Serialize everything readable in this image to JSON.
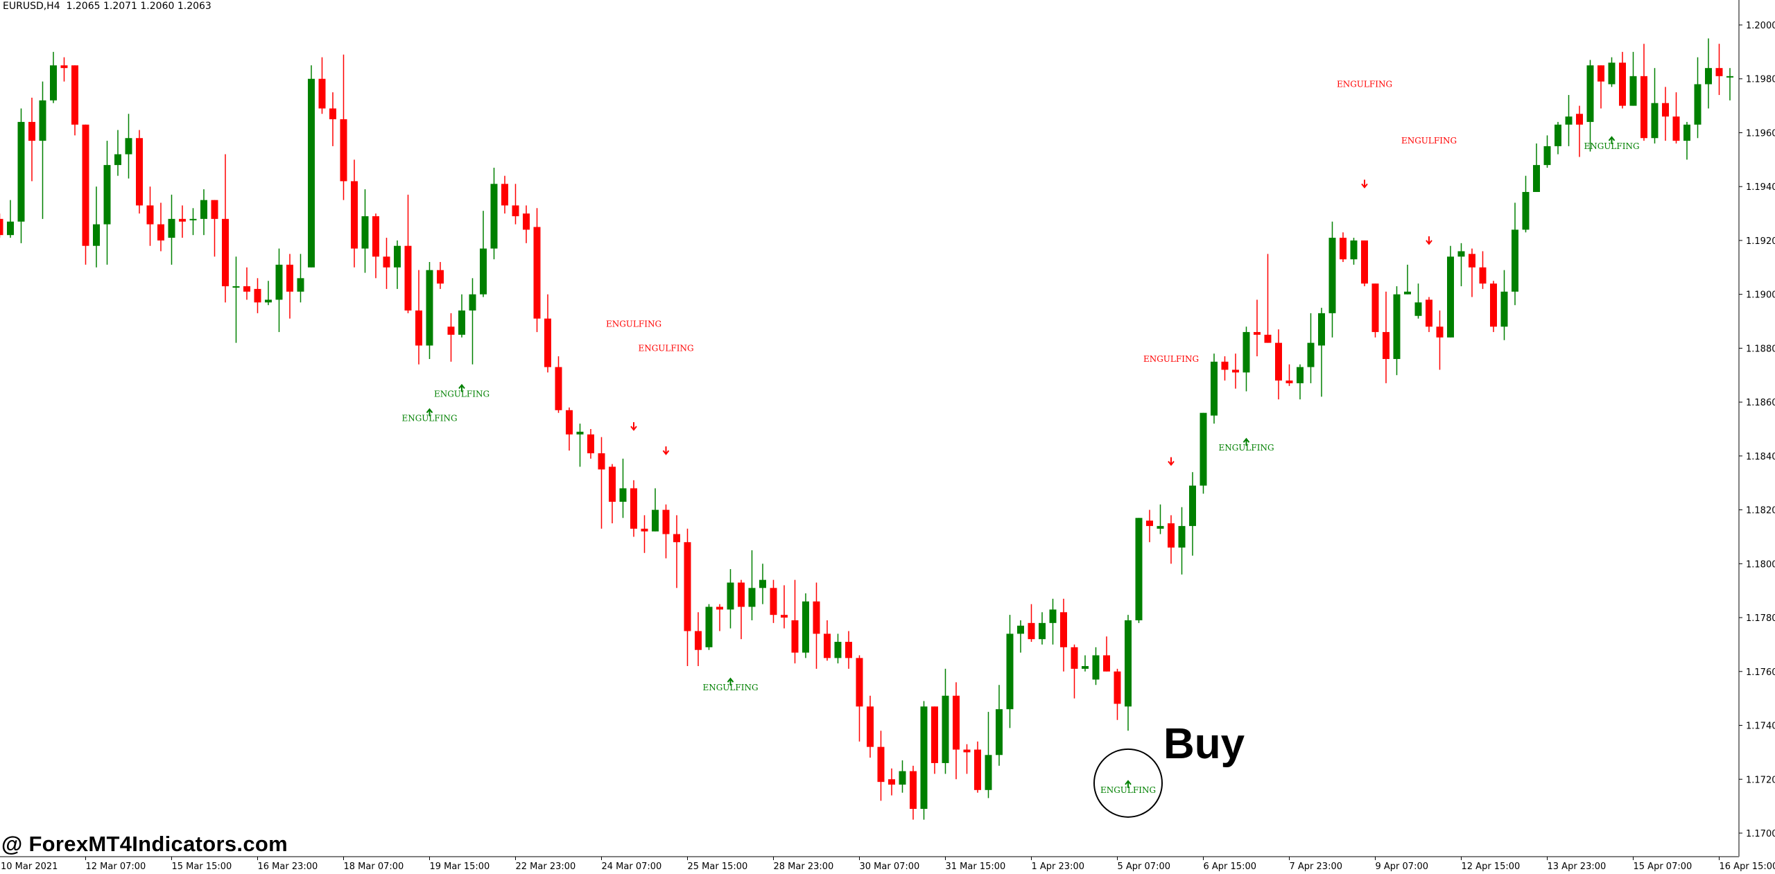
{
  "header": {
    "symbol": "EURUSD,H4",
    "ohlc_text": "1.2065 1.2071 1.2060 1.2063"
  },
  "watermark": "@ ForexMT4Indicators.com",
  "buy_label": "Buy",
  "colors": {
    "bull": "#008000",
    "bear": "#FF0000",
    "axis": "#808080",
    "background": "#FFFFFF"
  },
  "chart_data": {
    "type": "candlestick",
    "symbol": "EURUSD",
    "timeframe": "H4",
    "ylim": [
      1.17,
      1.2
    ],
    "y_ticks": [
      "1.2000",
      "1.1980",
      "1.1960",
      "1.1940",
      "1.1920",
      "1.1900",
      "1.1880",
      "1.1860",
      "1.1840",
      "1.1820",
      "1.1800",
      "1.1780",
      "1.1760",
      "1.1740",
      "1.1720",
      "1.1700"
    ],
    "x_ticks": [
      {
        "bar": 0,
        "label": "10 Mar 2021"
      },
      {
        "bar": 8,
        "label": "12 Mar 07:00"
      },
      {
        "bar": 16,
        "label": "15 Mar 15:00"
      },
      {
        "bar": 24,
        "label": "16 Mar 23:00"
      },
      {
        "bar": 32,
        "label": "18 Mar 07:00"
      },
      {
        "bar": 40,
        "label": "19 Mar 15:00"
      },
      {
        "bar": 48,
        "label": "22 Mar 23:00"
      },
      {
        "bar": 56,
        "label": "24 Mar 07:00"
      },
      {
        "bar": 64,
        "label": "25 Mar 15:00"
      },
      {
        "bar": 72,
        "label": "28 Mar 23:00"
      },
      {
        "bar": 80,
        "label": "30 Mar 07:00"
      },
      {
        "bar": 88,
        "label": "31 Mar 15:00"
      },
      {
        "bar": 96,
        "label": "1 Apr 23:00"
      },
      {
        "bar": 104,
        "label": "5 Apr 07:00"
      },
      {
        "bar": 112,
        "label": "6 Apr 15:00"
      },
      {
        "bar": 120,
        "label": "7 Apr 23:00"
      },
      {
        "bar": 128,
        "label": "9 Apr 07:00"
      },
      {
        "bar": 136,
        "label": "12 Apr 15:00"
      },
      {
        "bar": 144,
        "label": "13 Apr 23:00"
      },
      {
        "bar": 152,
        "label": "15 Apr 07:00"
      },
      {
        "bar": 160,
        "label": "16 Apr 15:00"
      }
    ],
    "ohlc_fields": [
      "open",
      "high",
      "low",
      "close"
    ],
    "candles": [
      [
        1.1928,
        1.193,
        1.1921,
        1.1922
      ],
      [
        1.1922,
        1.1935,
        1.1921,
        1.1927
      ],
      [
        1.1927,
        1.1969,
        1.1919,
        1.1964
      ],
      [
        1.1964,
        1.1973,
        1.1942,
        1.1957
      ],
      [
        1.1957,
        1.1979,
        1.1928,
        1.1972
      ],
      [
        1.1972,
        1.199,
        1.1971,
        1.1985
      ],
      [
        1.1985,
        1.1988,
        1.1979,
        1.1984
      ],
      [
        1.1985,
        1.1985,
        1.1959,
        1.1963
      ],
      [
        1.1963,
        1.1963,
        1.1911,
        1.1918
      ],
      [
        1.1918,
        1.194,
        1.191,
        1.1926
      ],
      [
        1.1926,
        1.1957,
        1.1911,
        1.1948
      ],
      [
        1.1948,
        1.1961,
        1.1944,
        1.1952
      ],
      [
        1.1952,
        1.1967,
        1.1943,
        1.1958
      ],
      [
        1.1958,
        1.1961,
        1.193,
        1.1933
      ],
      [
        1.1933,
        1.194,
        1.1918,
        1.1926
      ],
      [
        1.1926,
        1.1934,
        1.1916,
        1.192
      ],
      [
        1.1921,
        1.1937,
        1.1911,
        1.1928
      ],
      [
        1.1928,
        1.1933,
        1.1921,
        1.1927
      ],
      [
        1.1928,
        1.1932,
        1.1922,
        1.1928
      ],
      [
        1.1928,
        1.1939,
        1.1922,
        1.1935
      ],
      [
        1.1935,
        1.1935,
        1.1914,
        1.1928
      ],
      [
        1.1928,
        1.1952,
        1.1897,
        1.1903
      ],
      [
        1.1903,
        1.1914,
        1.1882,
        1.1903
      ],
      [
        1.1903,
        1.191,
        1.1898,
        1.1901
      ],
      [
        1.1902,
        1.1906,
        1.1893,
        1.1897
      ],
      [
        1.1897,
        1.1905,
        1.1896,
        1.1898
      ],
      [
        1.1898,
        1.1917,
        1.1886,
        1.1911
      ],
      [
        1.1911,
        1.1915,
        1.1891,
        1.1901
      ],
      [
        1.1901,
        1.1915,
        1.1897,
        1.1906
      ],
      [
        1.191,
        1.1985,
        1.191,
        1.198
      ],
      [
        1.198,
        1.1988,
        1.1967,
        1.1969
      ],
      [
        1.1969,
        1.1975,
        1.1955,
        1.1965
      ],
      [
        1.1965,
        1.1989,
        1.1935,
        1.1942
      ],
      [
        1.1942,
        1.195,
        1.191,
        1.1917
      ],
      [
        1.1917,
        1.1939,
        1.1908,
        1.1929
      ],
      [
        1.1929,
        1.193,
        1.1906,
        1.1914
      ],
      [
        1.1914,
        1.1921,
        1.1902,
        1.191
      ],
      [
        1.191,
        1.192,
        1.1902,
        1.1918
      ],
      [
        1.1918,
        1.1937,
        1.1893,
        1.1894
      ],
      [
        1.1894,
        1.1909,
        1.1874,
        1.1881
      ],
      [
        1.1881,
        1.1912,
        1.1876,
        1.1909
      ],
      [
        1.1909,
        1.1912,
        1.1902,
        1.1904
      ],
      [
        1.1888,
        1.1893,
        1.1875,
        1.1885
      ],
      [
        1.1885,
        1.19,
        1.1884,
        1.1894
      ],
      [
        1.1894,
        1.1906,
        1.1874,
        1.19
      ],
      [
        1.19,
        1.1931,
        1.1899,
        1.1917
      ],
      [
        1.1917,
        1.1947,
        1.1913,
        1.1941
      ],
      [
        1.1941,
        1.1944,
        1.193,
        1.1933
      ],
      [
        1.1933,
        1.1941,
        1.1926,
        1.1929
      ],
      [
        1.193,
        1.1933,
        1.1919,
        1.1924
      ],
      [
        1.1925,
        1.1932,
        1.1886,
        1.1891
      ],
      [
        1.1891,
        1.19,
        1.1871,
        1.1873
      ],
      [
        1.1873,
        1.1877,
        1.1856,
        1.1857
      ],
      [
        1.1857,
        1.1858,
        1.1842,
        1.1848
      ],
      [
        1.1848,
        1.1852,
        1.1836,
        1.1849
      ],
      [
        1.1848,
        1.185,
        1.1839,
        1.1841
      ],
      [
        1.1841,
        1.1847,
        1.1813,
        1.1835
      ],
      [
        1.1836,
        1.1837,
        1.1815,
        1.1823
      ],
      [
        1.1823,
        1.1839,
        1.1817,
        1.1828
      ],
      [
        1.1828,
        1.1831,
        1.181,
        1.1813
      ],
      [
        1.1813,
        1.1818,
        1.1804,
        1.1812
      ],
      [
        1.1812,
        1.1828,
        1.1812,
        1.182
      ],
      [
        1.182,
        1.1822,
        1.1802,
        1.1811
      ],
      [
        1.1811,
        1.1818,
        1.1791,
        1.1808
      ],
      [
        1.1808,
        1.1813,
        1.1762,
        1.1775
      ],
      [
        1.1775,
        1.1782,
        1.1762,
        1.1768
      ],
      [
        1.1769,
        1.1785,
        1.1768,
        1.1784
      ],
      [
        1.1784,
        1.1785,
        1.1775,
        1.1783
      ],
      [
        1.1783,
        1.1798,
        1.1776,
        1.1793
      ],
      [
        1.1793,
        1.1794,
        1.1772,
        1.1784
      ],
      [
        1.1784,
        1.1805,
        1.1779,
        1.1791
      ],
      [
        1.1791,
        1.18,
        1.1785,
        1.1794
      ],
      [
        1.1791,
        1.1794,
        1.1778,
        1.1781
      ],
      [
        1.1781,
        1.1792,
        1.1776,
        1.178
      ],
      [
        1.1779,
        1.1794,
        1.1763,
        1.1767
      ],
      [
        1.1767,
        1.1789,
        1.1765,
        1.1786
      ],
      [
        1.1786,
        1.1793,
        1.1761,
        1.1774
      ],
      [
        1.1774,
        1.1779,
        1.1764,
        1.1765
      ],
      [
        1.1765,
        1.1774,
        1.1763,
        1.1771
      ],
      [
        1.1771,
        1.1775,
        1.1761,
        1.1765
      ],
      [
        1.1765,
        1.1766,
        1.1734,
        1.1747
      ],
      [
        1.1747,
        1.1751,
        1.1728,
        1.1732
      ],
      [
        1.1732,
        1.1738,
        1.1712,
        1.1719
      ],
      [
        1.172,
        1.1724,
        1.1714,
        1.1718
      ],
      [
        1.1718,
        1.1727,
        1.1715,
        1.1723
      ],
      [
        1.1723,
        1.1725,
        1.1705,
        1.1709
      ],
      [
        1.1709,
        1.1749,
        1.1705,
        1.1747
      ],
      [
        1.1747,
        1.1747,
        1.1722,
        1.1726
      ],
      [
        1.1726,
        1.1761,
        1.1722,
        1.1751
      ],
      [
        1.1751,
        1.1756,
        1.172,
        1.1731
      ],
      [
        1.1731,
        1.1733,
        1.1722,
        1.173
      ],
      [
        1.1731,
        1.1734,
        1.1715,
        1.1716
      ],
      [
        1.1716,
        1.1745,
        1.1713,
        1.1729
      ],
      [
        1.1729,
        1.1755,
        1.1725,
        1.1746
      ],
      [
        1.1746,
        1.1781,
        1.1739,
        1.1774
      ],
      [
        1.1774,
        1.1779,
        1.1767,
        1.1777
      ],
      [
        1.1778,
        1.1785,
        1.1771,
        1.1772
      ],
      [
        1.1772,
        1.1782,
        1.177,
        1.1778
      ],
      [
        1.1778,
        1.1787,
        1.177,
        1.1783
      ],
      [
        1.1782,
        1.1787,
        1.176,
        1.1769
      ],
      [
        1.1769,
        1.177,
        1.175,
        1.1761
      ],
      [
        1.1761,
        1.1766,
        1.176,
        1.1762
      ],
      [
        1.1757,
        1.1769,
        1.1755,
        1.1766
      ],
      [
        1.1766,
        1.1773,
        1.176,
        1.176
      ],
      [
        1.176,
        1.1761,
        1.1742,
        1.1748
      ],
      [
        1.1747,
        1.1781,
        1.1738,
        1.1779
      ],
      [
        1.1779,
        1.1817,
        1.1778,
        1.1817
      ],
      [
        1.1816,
        1.182,
        1.1808,
        1.1814
      ],
      [
        1.1813,
        1.1822,
        1.1811,
        1.1814
      ],
      [
        1.1815,
        1.1818,
        1.18,
        1.1806
      ],
      [
        1.1806,
        1.1821,
        1.1796,
        1.1814
      ],
      [
        1.1814,
        1.1834,
        1.1803,
        1.1829
      ],
      [
        1.1829,
        1.1856,
        1.1826,
        1.1856
      ],
      [
        1.1855,
        1.1878,
        1.1852,
        1.1875
      ],
      [
        1.1875,
        1.1877,
        1.1868,
        1.1872
      ],
      [
        1.1872,
        1.1878,
        1.1865,
        1.1871
      ],
      [
        1.1871,
        1.1888,
        1.1864,
        1.1886
      ],
      [
        1.1886,
        1.1898,
        1.1877,
        1.1885
      ],
      [
        1.1885,
        1.1915,
        1.1882,
        1.1882
      ],
      [
        1.1882,
        1.1887,
        1.1861,
        1.1868
      ],
      [
        1.1868,
        1.1874,
        1.1866,
        1.1867
      ],
      [
        1.1867,
        1.1874,
        1.1861,
        1.1873
      ],
      [
        1.1873,
        1.1893,
        1.1867,
        1.1882
      ],
      [
        1.1881,
        1.1895,
        1.1862,
        1.1893
      ],
      [
        1.1893,
        1.1927,
        1.1884,
        1.1921
      ],
      [
        1.1921,
        1.1923,
        1.1912,
        1.1913
      ],
      [
        1.1913,
        1.1921,
        1.1911,
        1.192
      ],
      [
        1.192,
        1.192,
        1.1903,
        1.1904
      ],
      [
        1.1904,
        1.1904,
        1.1884,
        1.1886
      ],
      [
        1.1886,
        1.1901,
        1.1867,
        1.1876
      ],
      [
        1.1876,
        1.1903,
        1.187,
        1.19
      ],
      [
        1.19,
        1.1911,
        1.19,
        1.1901
      ],
      [
        1.1892,
        1.1904,
        1.1891,
        1.1897
      ],
      [
        1.1898,
        1.1899,
        1.1886,
        1.1888
      ],
      [
        1.1888,
        1.1894,
        1.1872,
        1.1884
      ],
      [
        1.1884,
        1.1918,
        1.1884,
        1.1914
      ],
      [
        1.1914,
        1.1919,
        1.1903,
        1.1916
      ],
      [
        1.1915,
        1.1917,
        1.1899,
        1.191
      ],
      [
        1.191,
        1.1916,
        1.1902,
        1.1904
      ],
      [
        1.1904,
        1.1905,
        1.1886,
        1.1888
      ],
      [
        1.1888,
        1.1909,
        1.1883,
        1.1901
      ],
      [
        1.1901,
        1.1934,
        1.1896,
        1.1924
      ],
      [
        1.1924,
        1.1944,
        1.1923,
        1.1938
      ],
      [
        1.1938,
        1.1956,
        1.1938,
        1.1948
      ],
      [
        1.1948,
        1.1959,
        1.1947,
        1.1955
      ],
      [
        1.1955,
        1.1964,
        1.1952,
        1.1963
      ],
      [
        1.1963,
        1.1974,
        1.1955,
        1.1966
      ],
      [
        1.1967,
        1.197,
        1.1951,
        1.1963
      ],
      [
        1.1964,
        1.1987,
        1.1953,
        1.1985
      ],
      [
        1.1985,
        1.1985,
        1.1969,
        1.1979
      ],
      [
        1.1978,
        1.1988,
        1.1977,
        1.1986
      ],
      [
        1.1986,
        1.199,
        1.1969,
        1.197
      ],
      [
        1.197,
        1.199,
        1.197,
        1.1981
      ],
      [
        1.1981,
        1.1993,
        1.1957,
        1.1958
      ],
      [
        1.1958,
        1.1984,
        1.1956,
        1.1971
      ],
      [
        1.1971,
        1.1977,
        1.1957,
        1.1966
      ],
      [
        1.1966,
        1.1975,
        1.1956,
        1.1957
      ],
      [
        1.1957,
        1.1964,
        1.195,
        1.1963
      ],
      [
        1.1963,
        1.1988,
        1.1958,
        1.1978
      ],
      [
        1.1978,
        1.1995,
        1.1969,
        1.1984
      ],
      [
        1.1984,
        1.1993,
        1.1974,
        1.1981
      ],
      [
        1.1981,
        1.1984,
        1.1972,
        1.1981
      ]
    ],
    "annotations": [
      {
        "bar": 40,
        "price": 1.1854,
        "text": "ENGULFING",
        "direction": "bullish"
      },
      {
        "bar": 43,
        "price": 1.1863,
        "text": "ENGULFING",
        "direction": "bullish"
      },
      {
        "bar": 59,
        "price": 1.1889,
        "text": "ENGULFING",
        "direction": "bearish",
        "arrow_price": 1.1851
      },
      {
        "bar": 62,
        "price": 1.188,
        "text": "ENGULFING",
        "direction": "bearish",
        "arrow_price": 1.1842
      },
      {
        "bar": 68,
        "price": 1.1754,
        "text": "ENGULFING",
        "direction": "bullish"
      },
      {
        "bar": 105,
        "price": 1.1716,
        "text": "ENGULFING",
        "direction": "bullish",
        "highlight": "Buy"
      },
      {
        "bar": 109,
        "price": 1.1876,
        "text": "ENGULFING",
        "direction": "bearish",
        "arrow_price": 1.1838
      },
      {
        "bar": 116,
        "price": 1.1843,
        "text": "ENGULFING",
        "direction": "bullish"
      },
      {
        "bar": 127,
        "price": 1.1978,
        "text": "ENGULFING",
        "direction": "bearish",
        "arrow_price": 1.1941
      },
      {
        "bar": 133,
        "price": 1.1957,
        "text": "ENGULFING",
        "direction": "bearish",
        "arrow_price": 1.192
      },
      {
        "bar": 150,
        "price": 1.1955,
        "text": "ENGULFING",
        "direction": "bullish"
      }
    ]
  }
}
